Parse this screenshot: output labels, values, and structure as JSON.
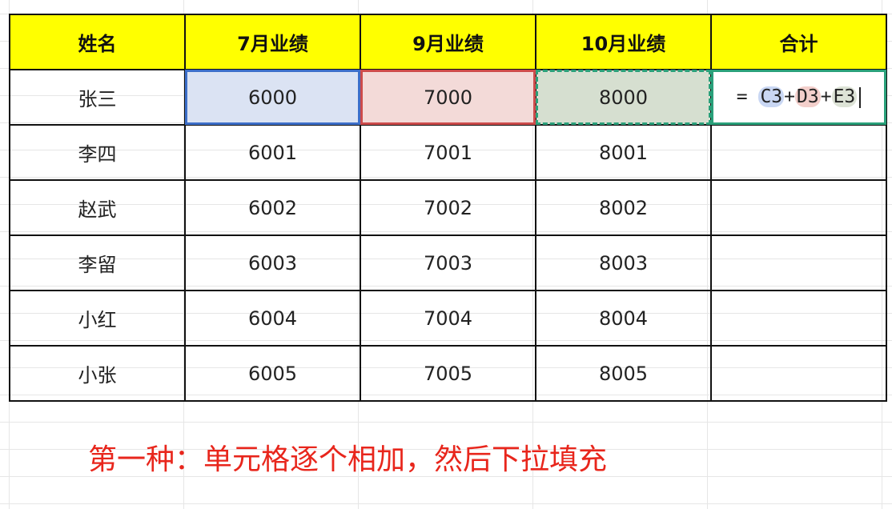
{
  "table": {
    "headers": [
      "姓名",
      "7月业绩",
      "9月业绩",
      "10月业绩",
      "合计"
    ],
    "rows": [
      [
        "张三",
        "6000",
        "7000",
        "8000"
      ],
      [
        "李四",
        "6001",
        "7001",
        "8001"
      ],
      [
        "赵武",
        "6002",
        "7002",
        "8002"
      ],
      [
        "李留",
        "6003",
        "7003",
        "8003"
      ],
      [
        "小红",
        "6004",
        "7004",
        "8004"
      ],
      [
        "小张",
        "6005",
        "7005",
        "8005"
      ]
    ],
    "formula": {
      "eq": "=",
      "ref1": "C3",
      "plus1": "+",
      "ref2": "D3",
      "plus2": "+",
      "ref3": "E3"
    }
  },
  "colors": {
    "header_bg": "#ffff00",
    "ref1": "#3d6fc9",
    "ref2": "#cc4b4b",
    "ref3": "#2aa07a",
    "caption": "#e8261c"
  },
  "caption": "第一种：单元格逐个相加，然后下拉填充"
}
